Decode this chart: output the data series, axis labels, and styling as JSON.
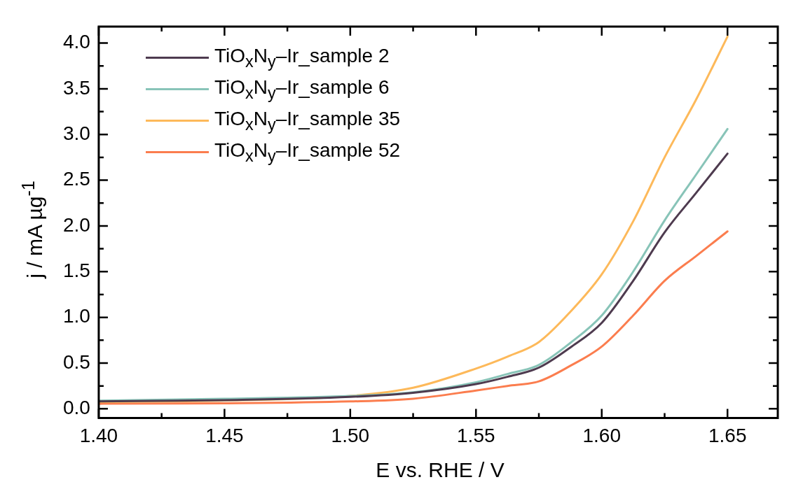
{
  "chart_data": {
    "type": "line",
    "xlabel": "E vs. RHE / V",
    "ylabel": "j / mA µg$^{-1}$",
    "x": [
      1.4,
      1.45,
      1.5,
      1.525,
      1.55,
      1.5625,
      1.575,
      1.5875,
      1.6,
      1.6125,
      1.625,
      1.6375,
      1.65
    ],
    "series": [
      {
        "name": "TiO$_{x}$N$_{y}$–Ir_sample 2",
        "color": "#4e3b4f",
        "values": [
          0.08,
          0.095,
          0.13,
          0.175,
          0.27,
          0.35,
          0.45,
          0.67,
          0.94,
          1.4,
          1.93,
          2.36,
          2.79
        ]
      },
      {
        "name": "TiO$_{x}$N$_{y}$–Ir_sample 6",
        "color": "#88c4b8",
        "values": [
          0.088,
          0.11,
          0.14,
          0.18,
          0.29,
          0.38,
          0.48,
          0.72,
          1.02,
          1.5,
          2.06,
          2.56,
          3.06
        ]
      },
      {
        "name": "TiO$_{x}$N$_{y}$–Ir_sample 35",
        "color": "#fdb95a",
        "values": [
          0.075,
          0.09,
          0.14,
          0.23,
          0.44,
          0.57,
          0.73,
          1.06,
          1.47,
          2.05,
          2.75,
          3.38,
          4.07
        ]
      },
      {
        "name": "TiO$_{x}$N$_{y}$–Ir_sample 52",
        "color": "#fb7d4e",
        "values": [
          0.055,
          0.06,
          0.08,
          0.11,
          0.2,
          0.25,
          0.3,
          0.47,
          0.68,
          1.02,
          1.4,
          1.67,
          1.94
        ]
      }
    ],
    "xlim": [
      1.4,
      1.67
    ],
    "ylim": [
      -0.1,
      4.18
    ],
    "xticks": [
      {
        "value": 1.4,
        "label": "1.40"
      },
      {
        "value": 1.425,
        "label": null
      },
      1.45,
      {
        "value": 1.475,
        "label": null
      },
      {
        "value": 1.5,
        "label": "1.50"
      },
      {
        "value": 1.525,
        "label": null
      },
      1.55,
      {
        "value": 1.575,
        "label": null
      },
      {
        "value": 1.6,
        "label": "1.60"
      },
      {
        "value": 1.625,
        "label": null
      },
      1.65
    ],
    "yticks": [
      {
        "value": 0,
        "label": "0.0"
      },
      {
        "value": 0.25,
        "label": null
      },
      0.5,
      {
        "value": 0.75,
        "label": null
      },
      {
        "value": 1,
        "label": "1.0"
      },
      {
        "value": 1.25,
        "label": null
      },
      1.5,
      {
        "value": 1.75,
        "label": null
      },
      {
        "value": 2,
        "label": "2.0"
      },
      {
        "value": 2.25,
        "label": null
      },
      2.5,
      {
        "value": 2.75,
        "label": null
      },
      {
        "value": 3,
        "label": "3.0"
      },
      {
        "value": 3.25,
        "label": null
      },
      3.5,
      {
        "value": 3.75,
        "label": null
      },
      {
        "value": 4,
        "label": "4.0"
      }
    ],
    "legend": "top left",
    "grid": false,
    "marker": "none",
    "line_style": "solid"
  }
}
